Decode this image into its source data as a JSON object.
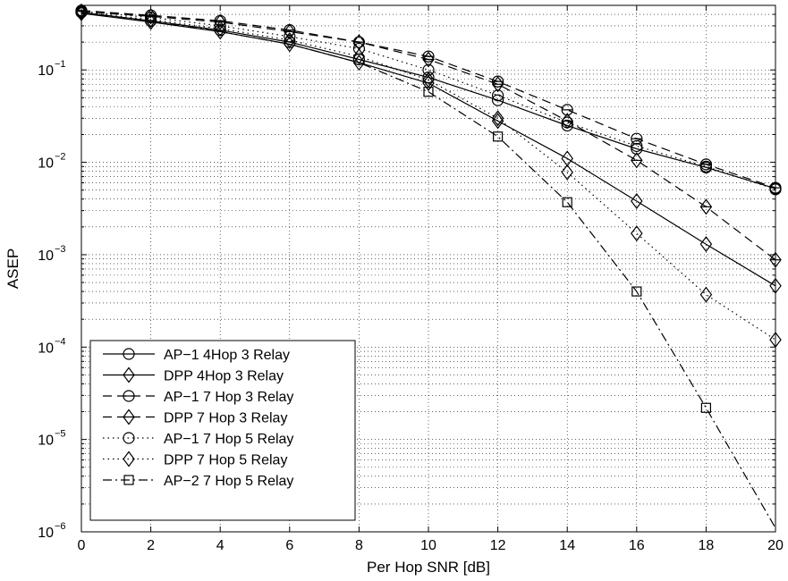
{
  "chart_data": {
    "type": "line",
    "xlabel": "Per Hop SNR [dB]",
    "ylabel": "ASEP",
    "xlim": [
      0,
      20
    ],
    "ylim": [
      1e-06,
      0.5
    ],
    "yscale": "log",
    "grid": "major and minor, dotted",
    "legend_position": "bottom-left",
    "x_ticks": [
      0,
      2,
      4,
      6,
      8,
      10,
      12,
      14,
      16,
      18,
      20
    ],
    "x_tick_labels": [
      "0",
      "2",
      "4",
      "6",
      "8",
      "10",
      "12",
      "14",
      "16",
      "18",
      "20"
    ],
    "y_ticks": [
      1e-06,
      1e-05,
      0.0001,
      0.001,
      0.01,
      0.1
    ],
    "y_tick_labels": [
      {
        "base": "10",
        "exp": "−6"
      },
      {
        "base": "10",
        "exp": "−5"
      },
      {
        "base": "10",
        "exp": "−4"
      },
      {
        "base": "10",
        "exp": "−3"
      },
      {
        "base": "10",
        "exp": "−2"
      },
      {
        "base": "10",
        "exp": "−1"
      }
    ],
    "series": [
      {
        "name": "AP−1  4Hop 3 Relay",
        "marker": "circle",
        "dash": "solid",
        "x": [
          0,
          2,
          4,
          6,
          8,
          10,
          12,
          14,
          16,
          18,
          20
        ],
        "y": [
          0.42,
          0.34,
          0.27,
          0.2,
          0.13,
          0.083,
          0.047,
          0.025,
          0.014,
          0.0088,
          0.0052
        ]
      },
      {
        "name": "DPP  4Hop 3 Relay",
        "marker": "diamond",
        "dash": "solid",
        "x": [
          0,
          2,
          4,
          6,
          8,
          10,
          12,
          14,
          16,
          18,
          20
        ],
        "y": [
          0.41,
          0.33,
          0.26,
          0.19,
          0.12,
          0.072,
          0.028,
          0.011,
          0.0038,
          0.0013,
          0.00046
        ]
      },
      {
        "name": "AP−1  7 Hop 3 Relay",
        "marker": "circle-bar",
        "dash": "dashed",
        "x": [
          0,
          2,
          4,
          6,
          8,
          10,
          12,
          14,
          16,
          18,
          20
        ],
        "y": [
          0.44,
          0.39,
          0.34,
          0.27,
          0.2,
          0.14,
          0.075,
          0.037,
          0.018,
          0.0095,
          0.0053
        ]
      },
      {
        "name": "DPP  7 Hop 3 Relay",
        "marker": "diamond-bar",
        "dash": "dashed",
        "x": [
          0,
          2,
          4,
          6,
          8,
          10,
          12,
          14,
          16,
          18,
          20
        ],
        "y": [
          0.43,
          0.38,
          0.33,
          0.26,
          0.2,
          0.13,
          0.07,
          0.028,
          0.0105,
          0.0033,
          0.00088
        ]
      },
      {
        "name": "AP−1  7 Hop 5 Relay",
        "marker": "circle",
        "dash": "dotted",
        "x": [
          0,
          2,
          4,
          6,
          8,
          10,
          12,
          14,
          16,
          18,
          20
        ],
        "y": [
          0.43,
          0.37,
          0.3,
          0.23,
          0.17,
          0.1,
          0.053,
          0.027,
          0.015,
          0.009,
          0.0051
        ]
      },
      {
        "name": "DPP  7 Hop 5 Relay",
        "marker": "diamond",
        "dash": "dotted",
        "x": [
          0,
          2,
          4,
          6,
          8,
          10,
          12,
          14,
          16,
          18,
          20
        ],
        "y": [
          0.42,
          0.35,
          0.28,
          0.21,
          0.14,
          0.078,
          0.03,
          0.0078,
          0.0017,
          0.00037,
          0.00012
        ]
      },
      {
        "name": "AP−2 7 Hop 5 Relay",
        "marker": "square",
        "dash": "dashdot",
        "x": [
          0,
          2,
          4,
          6,
          8,
          10,
          12,
          14,
          16,
          18,
          20
        ],
        "y": [
          0.41,
          0.34,
          0.26,
          0.19,
          0.12,
          0.058,
          0.019,
          0.0037,
          0.0004,
          2.2e-05,
          1.1e-06
        ],
        "marker_skip": [
          0,
          1,
          2,
          3,
          4,
          10
        ]
      }
    ]
  }
}
